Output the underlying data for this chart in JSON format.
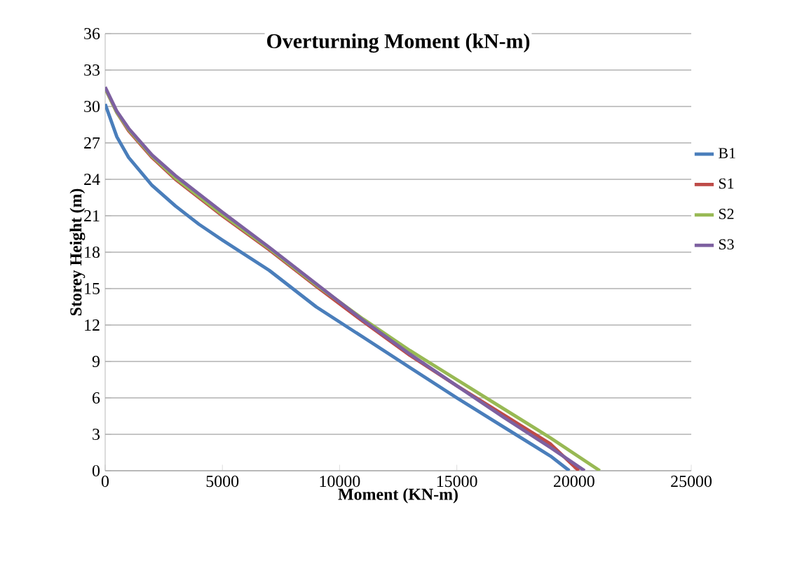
{
  "chart_data": {
    "type": "line",
    "title": "Overturning Moment (kN-m)",
    "xlabel": "Moment (KN-m)",
    "ylabel": "Storey Height (m)",
    "xlim": [
      0,
      25000
    ],
    "xticks": [
      0,
      5000,
      10000,
      15000,
      20000,
      25000
    ],
    "ylim": [
      0,
      36
    ],
    "yticks": [
      0,
      3,
      6,
      9,
      12,
      15,
      18,
      21,
      24,
      27,
      30,
      33,
      36
    ],
    "grid": "y",
    "legend": "right",
    "marker": "none",
    "line_style": "solid",
    "series": [
      {
        "name": "B1",
        "color": "#4a7ebb",
        "x": [
          0,
          500,
          1000,
          2000,
          3000,
          4000,
          5000,
          7000,
          9000,
          11000,
          13000,
          15000,
          17000,
          19000,
          19800
        ],
        "values": [
          30.2,
          27.5,
          25.8,
          23.5,
          21.8,
          20.3,
          19,
          16.5,
          13.5,
          11,
          8.5,
          6,
          3.6,
          1.2,
          0
        ]
      },
      {
        "name": "S1",
        "color": "#be4b48",
        "x": [
          0,
          500,
          1000,
          2000,
          3000,
          4000,
          5000,
          7000,
          9000,
          11000,
          13000,
          15000,
          17000,
          19000,
          20200
        ],
        "values": [
          31.5,
          29.5,
          28,
          25.8,
          24,
          22.5,
          21,
          18.2,
          15.2,
          12.3,
          9.5,
          7,
          4.6,
          2.2,
          0
        ]
      },
      {
        "name": "S2",
        "color": "#98b954",
        "x": [
          0,
          500,
          1000,
          2000,
          3000,
          4000,
          5000,
          7000,
          9000,
          11000,
          13000,
          15000,
          17000,
          19000,
          21100
        ],
        "values": [
          31.5,
          29.5,
          28.1,
          25.9,
          24.1,
          22.6,
          21.1,
          18.3,
          15.3,
          12.5,
          9.9,
          7.5,
          5.1,
          2.7,
          0
        ]
      },
      {
        "name": "S3",
        "color": "#7d60a0",
        "x": [
          0,
          500,
          1000,
          2000,
          3000,
          4000,
          5000,
          7000,
          9000,
          11000,
          13000,
          15000,
          17000,
          19000,
          20450
        ],
        "values": [
          31.6,
          29.6,
          28.2,
          26,
          24.3,
          22.8,
          21.3,
          18.4,
          15.4,
          12.4,
          9.6,
          7,
          4.4,
          1.9,
          0
        ]
      }
    ]
  }
}
